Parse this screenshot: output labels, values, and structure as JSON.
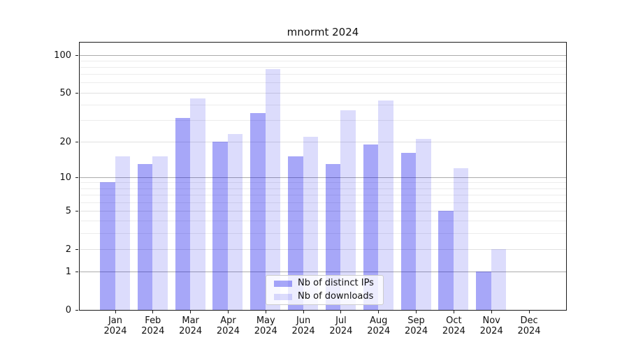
{
  "page": {
    "background": "#ffffff"
  },
  "chart_data": {
    "type": "bar",
    "title": "mnormt 2024",
    "categories": [
      "Jan 2024",
      "Feb 2024",
      "Mar 2024",
      "Apr 2024",
      "May 2024",
      "Jun 2024",
      "Jul 2024",
      "Aug 2024",
      "Sep 2024",
      "Oct 2024",
      "Nov 2024",
      "Dec 2024"
    ],
    "series": [
      {
        "name": "Nb of distinct IPs",
        "color": "#a6a6f4",
        "fill": "rgba(0,0,235,0.345)",
        "values": [
          9,
          13,
          31,
          20,
          34,
          15,
          13,
          19,
          16,
          5,
          1,
          0
        ]
      },
      {
        "name": "Nb of downloads",
        "color": "#dcdcf9",
        "fill": "rgba(0,0,235,0.137)",
        "values": [
          15,
          15,
          45,
          23,
          77,
          22,
          36,
          43,
          21,
          12,
          2,
          0
        ]
      }
    ],
    "y_axis": {
      "ticks": [
        0,
        1,
        2,
        5,
        10,
        20,
        50,
        100
      ],
      "scale": "symlog-ln(1+v)",
      "ylim": [
        0,
        128
      ],
      "grid": true
    },
    "x_axis": {
      "label_lines": 2
    },
    "legend": {
      "position": "inside-bottom-center",
      "border_color": "#cccccc",
      "background": "rgba(255,255,255,0.8)"
    },
    "colors": {
      "grid_major": "#ababab",
      "grid_mid": "#e0e0e0",
      "grid_minor": "#ececec",
      "spine": "#1a1a1a",
      "text": "#111111"
    }
  }
}
